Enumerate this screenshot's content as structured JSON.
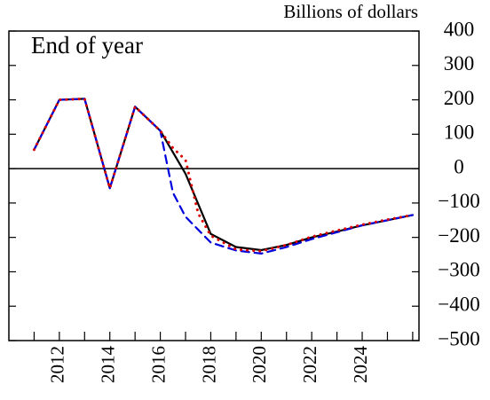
{
  "chart_data": {
    "type": "line",
    "annotation": "End of year",
    "y_axis_label": "Billions of dollars",
    "xlim": [
      2010,
      2026.25
    ],
    "ylim": [
      -500,
      400
    ],
    "yticks": [
      400,
      300,
      200,
      100,
      0,
      {
        "value": -100,
        "label": "−100"
      },
      {
        "value": -200,
        "label": "−200"
      },
      {
        "value": -300,
        "label": "−300"
      },
      {
        "value": -400,
        "label": "−400"
      },
      {
        "value": -500,
        "label": "−500"
      }
    ],
    "xticks": [
      2012,
      2014,
      2016,
      2018,
      2020,
      2022,
      2024
    ],
    "xminor_ticks": [
      2011,
      2013,
      2015,
      2017,
      2019,
      2021,
      2023,
      2025,
      2026
    ],
    "zero_line": true,
    "series": [
      {
        "color": "#000000",
        "dash": "solid",
        "x": [
          2011,
          2012,
          2013,
          2014,
          2015,
          2016,
          2017,
          2018,
          2019,
          2020,
          2021,
          2022,
          2023,
          2024,
          2025,
          2026
        ],
        "values": [
          55,
          200,
          203,
          -57,
          180,
          110,
          -15,
          -190,
          -228,
          -237,
          -222,
          -200,
          -183,
          -165,
          -150,
          -135
        ]
      },
      {
        "color": "#dd0000",
        "dash": "dotted",
        "x": [
          2011,
          2012,
          2013,
          2014,
          2015,
          2016,
          2016.5,
          2017,
          2017.5,
          2018,
          2019,
          2020,
          2021,
          2022,
          2023,
          2024,
          2025,
          2026
        ],
        "values": [
          55,
          200,
          203,
          -57,
          180,
          110,
          60,
          25,
          -130,
          -195,
          -235,
          -240,
          -222,
          -198,
          -180,
          -163,
          -148,
          -135
        ]
      },
      {
        "color": "#0000dd",
        "dash": "dashed",
        "x": [
          2011,
          2012,
          2013,
          2014,
          2015,
          2016,
          2016.5,
          2017,
          2018,
          2019,
          2020,
          2021,
          2022,
          2023,
          2024,
          2025,
          2026
        ],
        "values": [
          55,
          200,
          203,
          -57,
          180,
          110,
          -70,
          -140,
          -215,
          -238,
          -247,
          -228,
          -205,
          -185,
          -165,
          -150,
          -135
        ]
      }
    ]
  }
}
